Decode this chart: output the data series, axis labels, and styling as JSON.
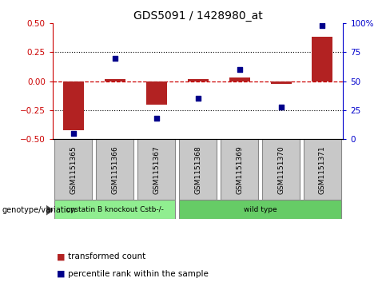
{
  "title": "GDS5091 / 1428980_at",
  "samples": [
    "GSM1151365",
    "GSM1151366",
    "GSM1151367",
    "GSM1151368",
    "GSM1151369",
    "GSM1151370",
    "GSM1151371"
  ],
  "transformed_count": [
    -0.42,
    0.02,
    -0.2,
    0.02,
    0.03,
    -0.02,
    0.38
  ],
  "percentile_rank": [
    5,
    70,
    18,
    35,
    60,
    28,
    98
  ],
  "bar_color": "#b22222",
  "dot_color": "#00008b",
  "ylim_left": [
    -0.5,
    0.5
  ],
  "ylim_right": [
    0,
    100
  ],
  "yticks_left": [
    -0.5,
    -0.25,
    0.0,
    0.25,
    0.5
  ],
  "yticks_right": [
    0,
    25,
    50,
    75,
    100
  ],
  "ytick_labels_right": [
    "0",
    "25",
    "50",
    "75",
    "100%"
  ],
  "dotted_lines": [
    0.25,
    -0.25
  ],
  "zero_line_color": "#cc0000",
  "groups": [
    {
      "label": "cystatin B knockout Cstb-/-",
      "samples": [
        0,
        1,
        2
      ],
      "color": "#90ee90"
    },
    {
      "label": "wild type",
      "samples": [
        3,
        4,
        5,
        6
      ],
      "color": "#66cc66"
    }
  ],
  "genotype_label": "genotype/variation",
  "legend_items": [
    {
      "label": "transformed count",
      "color": "#b22222"
    },
    {
      "label": "percentile rank within the sample",
      "color": "#00008b"
    }
  ],
  "background_color": "#ffffff",
  "plot_bg": "#ffffff",
  "tick_label_color_left": "#cc0000",
  "tick_label_color_right": "#0000cc",
  "bar_width": 0.5,
  "sample_box_color": "#c8c8c8",
  "sample_box_edge": "#888888"
}
